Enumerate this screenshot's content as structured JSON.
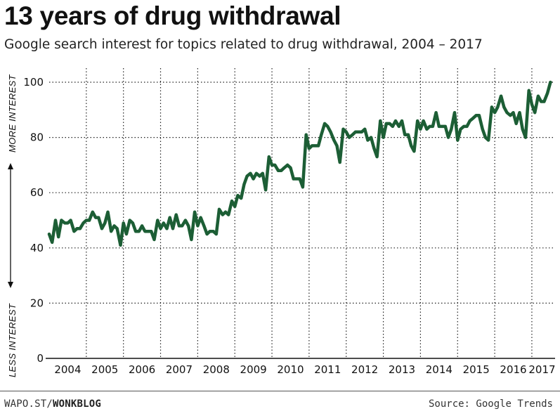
{
  "header": {
    "title": "13 years of drug withdrawal",
    "subtitle": "Google search interest for topics related to drug withdrawal, 2004 – 2017"
  },
  "footer": {
    "credit_plain": "WAPO.ST/",
    "credit_bold": "WONKBLOG",
    "source": "Source: Google Trends"
  },
  "chart_data": {
    "type": "line",
    "title": "13 years of drug withdrawal",
    "subtitle": "Google search interest for topics related to drug withdrawal, 2004 – 2017",
    "xlabel": "",
    "ylabel_top": "MORE INTEREST",
    "ylabel_bottom": "LESS INTEREST",
    "ylim": [
      0,
      100
    ],
    "yticks": [
      0,
      20,
      40,
      60,
      80,
      100
    ],
    "xlim": [
      2004.0,
      2017.55
    ],
    "xticks": [
      "2004",
      "2005",
      "2006",
      "2007",
      "2008",
      "2009",
      "2010",
      "2011",
      "2012",
      "2013",
      "2014",
      "2015",
      "2016",
      "2017"
    ],
    "grid": true,
    "line_color": "#1c5e35",
    "series": [
      {
        "name": "",
        "x": [
          2004.0,
          2004.08,
          2004.17,
          2004.25,
          2004.33,
          2004.42,
          2004.5,
          2004.58,
          2004.67,
          2004.75,
          2004.83,
          2004.92,
          2005.0,
          2005.08,
          2005.17,
          2005.25,
          2005.33,
          2005.42,
          2005.5,
          2005.58,
          2005.67,
          2005.75,
          2005.83,
          2005.92,
          2006.0,
          2006.08,
          2006.17,
          2006.25,
          2006.33,
          2006.42,
          2006.5,
          2006.58,
          2006.67,
          2006.75,
          2006.83,
          2006.92,
          2007.0,
          2007.08,
          2007.17,
          2007.25,
          2007.33,
          2007.42,
          2007.5,
          2007.58,
          2007.67,
          2007.75,
          2007.83,
          2007.92,
          2008.0,
          2008.08,
          2008.17,
          2008.25,
          2008.33,
          2008.42,
          2008.5,
          2008.58,
          2008.67,
          2008.75,
          2008.83,
          2008.92,
          2009.0,
          2009.08,
          2009.17,
          2009.25,
          2009.33,
          2009.42,
          2009.5,
          2009.58,
          2009.67,
          2009.75,
          2009.83,
          2009.92,
          2010.0,
          2010.08,
          2010.17,
          2010.25,
          2010.33,
          2010.42,
          2010.5,
          2010.58,
          2010.67,
          2010.75,
          2010.83,
          2010.92,
          2011.0,
          2011.08,
          2011.17,
          2011.25,
          2011.33,
          2011.42,
          2011.5,
          2011.58,
          2011.67,
          2011.75,
          2011.83,
          2011.92,
          2012.0,
          2012.08,
          2012.17,
          2012.25,
          2012.33,
          2012.42,
          2012.5,
          2012.58,
          2012.67,
          2012.75,
          2012.83,
          2012.92,
          2013.0,
          2013.08,
          2013.17,
          2013.25,
          2013.33,
          2013.42,
          2013.5,
          2013.58,
          2013.67,
          2013.75,
          2013.83,
          2013.92,
          2014.0,
          2014.08,
          2014.17,
          2014.25,
          2014.33,
          2014.42,
          2014.5,
          2014.58,
          2014.67,
          2014.75,
          2014.83,
          2014.92,
          2015.0,
          2015.08,
          2015.17,
          2015.25,
          2015.33,
          2015.42,
          2015.5,
          2015.58,
          2015.67,
          2015.75,
          2015.83,
          2015.92,
          2016.0,
          2016.08,
          2016.17,
          2016.25,
          2016.33,
          2016.42,
          2016.5,
          2016.58,
          2016.67,
          2016.75,
          2016.83,
          2016.92,
          2017.0,
          2017.08,
          2017.17,
          2017.25,
          2017.33,
          2017.42,
          2017.5
        ],
        "values": [
          45,
          42,
          50,
          44,
          50,
          49,
          49,
          50,
          46,
          47,
          47,
          49,
          50,
          50,
          53,
          51,
          51,
          47,
          49,
          53,
          46,
          48,
          47,
          41,
          49,
          45,
          50,
          49,
          46,
          46,
          48,
          46,
          46,
          46,
          43,
          50,
          47,
          49,
          47,
          51,
          47,
          52,
          48,
          48,
          50,
          48,
          43,
          53,
          48,
          51,
          48,
          45,
          46,
          46,
          45,
          54,
          52,
          53,
          52,
          57,
          55,
          59,
          58,
          63,
          66,
          67,
          65,
          67,
          66,
          67,
          61,
          73,
          70,
          70,
          68,
          68,
          69,
          70,
          69,
          65,
          65,
          65,
          62,
          81,
          76,
          77,
          77,
          77,
          81,
          85,
          84,
          82,
          79,
          77,
          71,
          83,
          82,
          80,
          81,
          82,
          82,
          82,
          83,
          79,
          80,
          76,
          73,
          86,
          80,
          85,
          85,
          84,
          86,
          84,
          86,
          81,
          81,
          77,
          75,
          86,
          83,
          86,
          83,
          84,
          84,
          89,
          84,
          84,
          84,
          80,
          83,
          89,
          79,
          83,
          84,
          84,
          86,
          87,
          88,
          88,
          83,
          80,
          79,
          91,
          89,
          91,
          95,
          91,
          89,
          88,
          89,
          85,
          89,
          83,
          80,
          97,
          92,
          89,
          95,
          93,
          93,
          96,
          100
        ]
      }
    ]
  }
}
